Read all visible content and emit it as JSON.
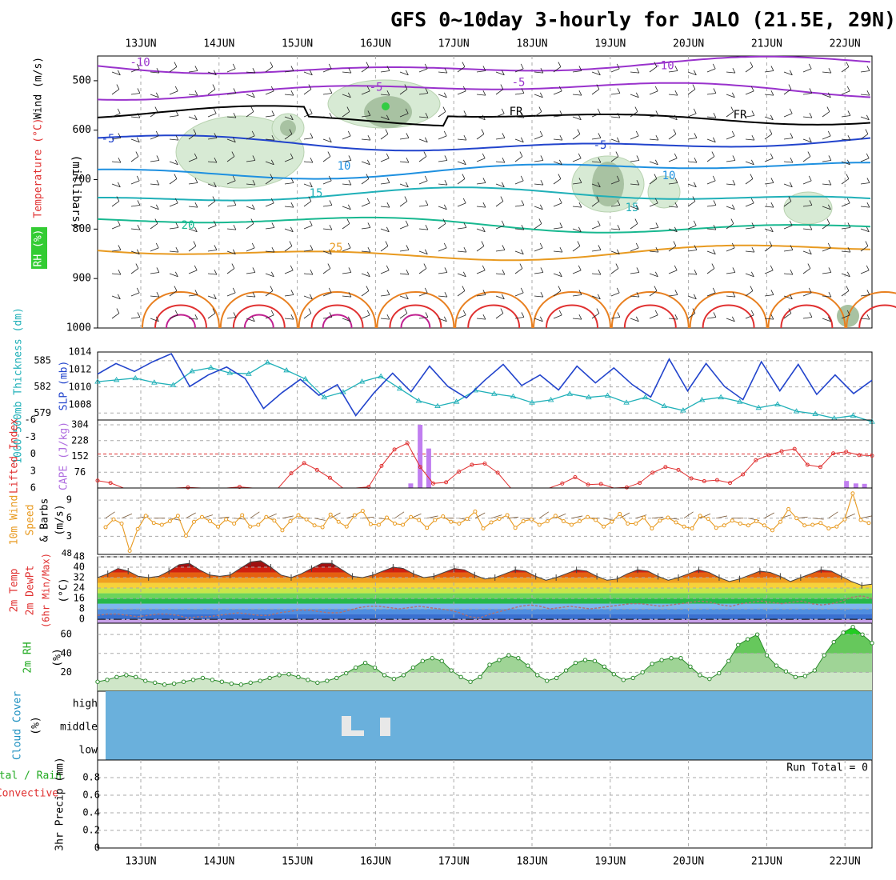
{
  "title": "GFS 0~10day 3-hourly for JALO (21.5E, 29N)",
  "colors": {
    "red": "#e03030",
    "purple": "#9932cc",
    "green": "#33cc33",
    "blue": "#2244cc",
    "cyan": "#20b0b8",
    "orange": "#e89a20",
    "sky": "#6ab0dc",
    "grid": "#aaaaaa"
  },
  "chart_data": [
    {
      "panel": "upper-air",
      "type": "contour",
      "dates": [
        "13JUN",
        "14JUN",
        "15JUN",
        "16JUN",
        "17JUN",
        "18JUN",
        "19JUN",
        "20JUN",
        "21JUN",
        "22JUN"
      ],
      "ylabel": "(millibars)",
      "side_labels": [
        "RH (%)",
        "Temperature (°C)",
        "Wind (m/s)"
      ],
      "y_ticks": [
        500,
        600,
        700,
        800,
        900,
        1000
      ],
      "ylim": [
        1000,
        450
      ],
      "isotherms": [
        {
          "label": "-10",
          "color": "#9932cc",
          "p": 470
        },
        {
          "label": "-5",
          "color": "#9932cc",
          "p": 520
        },
        {
          "label": "FR",
          "color": "#000000",
          "p": 570
        },
        {
          "label": "-5",
          "color": "#2244cc",
          "p": 625
        },
        {
          "label": "10",
          "color": "#1e90e0",
          "p": 680
        },
        {
          "label": "15",
          "color": "#20b0b8",
          "p": 735
        },
        {
          "label": "20",
          "color": "#18b890",
          "p": 790
        },
        {
          "label": "25",
          "color": "#e89a20",
          "p": 845
        }
      ]
    },
    {
      "panel": "thickness-slp",
      "type": "line",
      "left_label": "1000-500mb Thickness (dm)",
      "right_label": "SLP (mb)",
      "left_ticks": [
        579,
        582,
        585
      ],
      "right_ticks": [
        1008,
        1010,
        1012,
        1014
      ],
      "series": [
        {
          "name": "Thickness",
          "color": "#20b0b8",
          "values": [
            582.6,
            582.8,
            583,
            582.5,
            582.2,
            583.8,
            584.2,
            583.6,
            583.5,
            584.8,
            583.9,
            582.9,
            580.8,
            581.4,
            582.6,
            583.2,
            581.8,
            580.4,
            579.8,
            580.3,
            581.6,
            581.2,
            580.9,
            580.2,
            580.5,
            581.2,
            580.8,
            581,
            580.2,
            580.8,
            579.8,
            579.3,
            580.5,
            580.8,
            580.3,
            579.6,
            580,
            579.2,
            578.9,
            578.4,
            578.7,
            578
          ]
        },
        {
          "name": "SLP",
          "color": "#2244cc",
          "values": [
            1011.5,
            1012.7,
            1011.8,
            1012.9,
            1013.8,
            1010.1,
            1011.4,
            1012.3,
            1011,
            1007.6,
            1009.4,
            1010.9,
            1009.1,
            1010.3,
            1006.8,
            1009.4,
            1011.6,
            1009.5,
            1012.4,
            1010.1,
            1008.8,
            1010.8,
            1012.6,
            1010.2,
            1011.4,
            1009.7,
            1012.4,
            1010.5,
            1012.2,
            1010.3,
            1008.9,
            1013.2,
            1009.6,
            1012.7,
            1010.1,
            1008.6,
            1012.9,
            1009.6,
            1012.6,
            1009.2,
            1011.4,
            1009.3,
            1010.8
          ]
        }
      ]
    },
    {
      "panel": "instability",
      "type": "bar+line",
      "left_label": "Lifted Index",
      "right_label": "CAPE (J/kg)",
      "left_ticks": [
        "-6",
        "-3",
        "0",
        "3",
        "6"
      ],
      "right_ticks": [
        76,
        152,
        228,
        304
      ],
      "cape": [
        {
          "t": 3.45,
          "v": 22
        },
        {
          "t": 3.57,
          "v": 304
        },
        {
          "t": 3.68,
          "v": 190
        },
        {
          "t": 9.02,
          "v": 34
        },
        {
          "t": 9.14,
          "v": 22
        },
        {
          "t": 9.25,
          "v": 20
        }
      ],
      "lifted_index": [
        4.7,
        5.1,
        7.2,
        7.3,
        6.8,
        6.4,
        6.7,
        5.9,
        6.5,
        7.1,
        6.6,
        5.8,
        6.7,
        7,
        6.3,
        3.4,
        1.6,
        2.8,
        4.2,
        7,
        7.3,
        5.8,
        2.1,
        -0.8,
        -1.9,
        2.3,
        5.2,
        5,
        3.1,
        1.9,
        1.7,
        3.3,
        6.3,
        6.9,
        6.6,
        6.2,
        5.2,
        4.1,
        5.4,
        5.3,
        6.3,
        5.9,
        5.1,
        3.3,
        2.3,
        2.8,
        4.3,
        4.8,
        4.6,
        5.1,
        3.6,
        1.1,
        0.2,
        -0.5,
        -0.9,
        1.9,
        2.3,
        -0.1,
        -0.4,
        0.2,
        0.3
      ]
    },
    {
      "panel": "wind10m",
      "type": "line",
      "left_label": "10m Wind Speed & Barbs (m/s)",
      "y_ticks": [
        3,
        6,
        9
      ],
      "ylim": [
        0,
        11
      ],
      "values": [
        4.5,
        5.8,
        5.1,
        0.6,
        4.2,
        6.4,
        5.2,
        4.9,
        5.5,
        6.4,
        3.1,
        5.4,
        6.2,
        5.5,
        4.6,
        5.8,
        5.1,
        6.5,
        4.6,
        4.9,
        6.2,
        5.6,
        4,
        5.5,
        6.5,
        5.8,
        4.8,
        4.5,
        6.6,
        5.4,
        4.6,
        6.5,
        7.2,
        5,
        4.9,
        6.1,
        5.1,
        4.9,
        6.2,
        5.7,
        4.4,
        5.7,
        6.3,
        5.4,
        5.1,
        5.9,
        7.1,
        4.3,
        5.3,
        5.9,
        6.5,
        4.4,
        5.5,
        5.8,
        4.9,
        5.5,
        6.4,
        5.5,
        4.9,
        5.5,
        6.2,
        5.7,
        4.6,
        5.4,
        6.7,
        5.1,
        5.1,
        6.1,
        4.3,
        5.6,
        6.1,
        5.3,
        4.6,
        4.3,
        6.4,
        5.9,
        4.4,
        4.8,
        5.6,
        5.1,
        4.8,
        5.5,
        4.8,
        4,
        5.4,
        7.5,
        6,
        4.8,
        4.9,
        5.2,
        4.3,
        4.6,
        5.8,
        10.1,
        5.7,
        5.2
      ]
    },
    {
      "panel": "temperature",
      "type": "area",
      "left_label": "2m Temp 2m DewPt (6hr Min/Max) (°C)",
      "y_ticks": [
        0,
        8,
        16,
        24,
        32,
        40,
        48
      ],
      "temp": [
        32,
        35,
        39,
        37,
        33,
        32,
        33,
        37,
        42,
        43,
        38,
        34,
        33,
        34,
        39,
        44,
        45,
        40,
        34,
        32,
        35,
        39,
        43,
        43,
        38,
        33,
        32,
        34,
        37,
        40,
        39,
        35,
        32,
        33,
        36,
        39,
        38,
        34,
        31,
        32,
        35,
        38,
        37,
        33,
        30,
        32,
        35,
        38,
        37,
        33,
        30,
        31,
        35,
        38,
        37,
        33,
        30,
        32,
        35,
        38,
        36,
        32,
        29,
        31,
        34,
        37,
        36,
        33,
        29,
        32,
        35,
        38,
        37,
        33,
        29,
        26,
        27
      ],
      "dewpoint": [
        3,
        4,
        4,
        3,
        2,
        3,
        4,
        4,
        3,
        1,
        2,
        2,
        3,
        4,
        5,
        4,
        3,
        3,
        5,
        6,
        7,
        7,
        6,
        5,
        5,
        7,
        9,
        10,
        10,
        9,
        8,
        9,
        10,
        9,
        8,
        7,
        5,
        2,
        1,
        4,
        6,
        8,
        10,
        11,
        10,
        8,
        9,
        10,
        9,
        8,
        9,
        10,
        11,
        12,
        12,
        11,
        10,
        11,
        12,
        13,
        14,
        13,
        11,
        10,
        12,
        13,
        14,
        13,
        12,
        13,
        14,
        12,
        11,
        12,
        14,
        17,
        18,
        16
      ]
    },
    {
      "panel": "rh2m",
      "type": "area",
      "left_label": "2m RH (%)",
      "y_ticks": [
        20,
        40,
        60
      ],
      "ylim": [
        0,
        72
      ],
      "values": [
        10,
        12,
        15,
        17,
        15,
        11,
        9,
        7,
        8,
        10,
        12,
        14,
        12,
        10,
        8,
        7,
        9,
        11,
        14,
        17,
        18,
        15,
        12,
        9,
        11,
        14,
        19,
        25,
        30,
        25,
        17,
        13,
        17,
        25,
        32,
        35,
        32,
        22,
        15,
        10,
        15,
        28,
        33,
        38,
        35,
        27,
        17,
        11,
        14,
        22,
        30,
        33,
        32,
        26,
        18,
        12,
        14,
        20,
        29,
        33,
        35,
        35,
        26,
        17,
        13,
        19,
        32,
        49,
        55,
        60,
        38,
        27,
        21,
        15,
        16,
        22,
        38,
        52,
        62,
        68,
        60,
        51
      ]
    },
    {
      "panel": "cloud",
      "type": "heatmap",
      "left_label": "Cloud Cover (%)",
      "levels": [
        "high",
        "middle",
        "low"
      ]
    },
    {
      "panel": "precip",
      "type": "bar",
      "left_label": "3hr Precip (mm)",
      "legend": [
        "Total / Rain",
        "Convective"
      ],
      "y_ticks": [
        "0",
        "0.2",
        "0.4",
        "0.6",
        "0.8"
      ],
      "ylim": [
        0,
        1
      ],
      "run_total": "Run Total = 0",
      "values": []
    }
  ]
}
